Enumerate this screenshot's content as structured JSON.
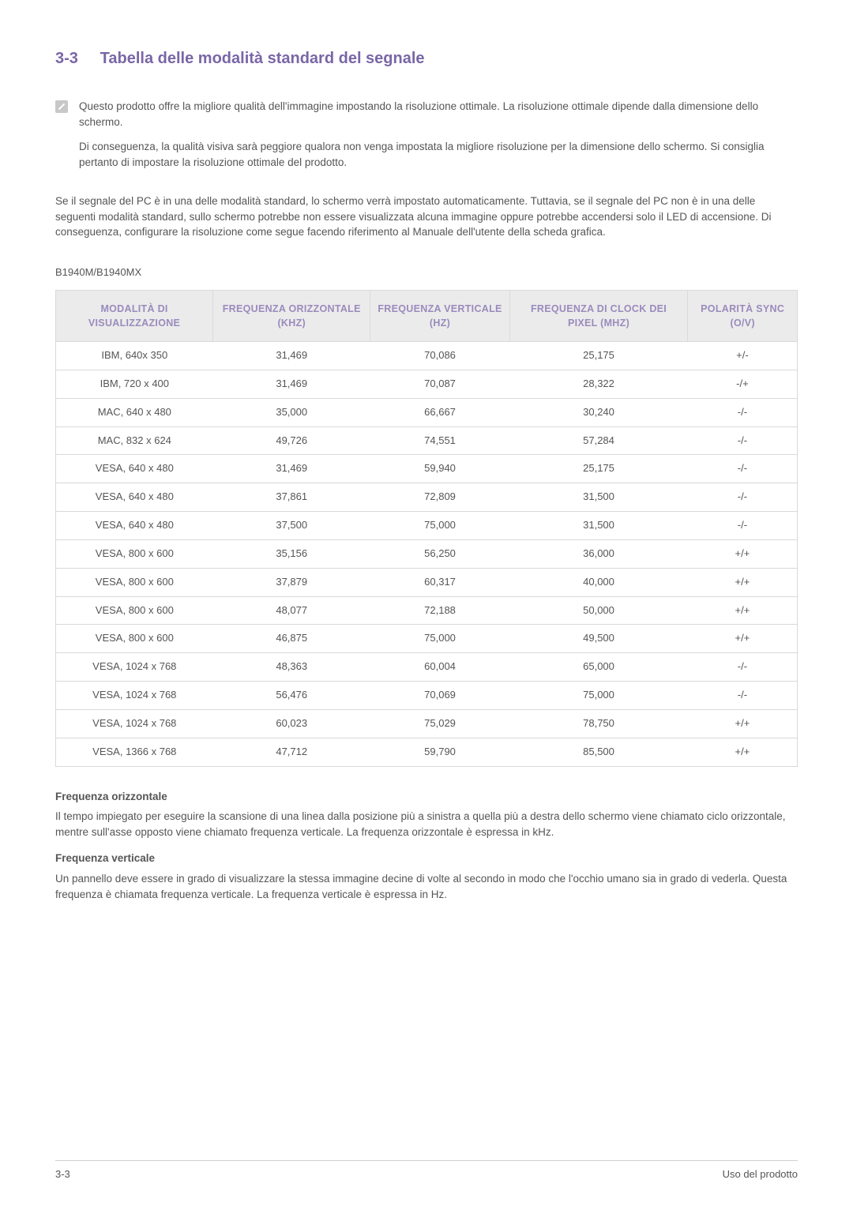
{
  "heading": {
    "number": "3-3",
    "title": "Tabella delle modalità standard del segnale"
  },
  "note": {
    "p1": "Questo prodotto offre la migliore qualità dell'immagine impostando la risoluzione ottimale. La risoluzione ottimale dipende dalla dimensione dello schermo.",
    "p2": "Di conseguenza, la qualità visiva sarà peggiore qualora non venga impostata la migliore risoluzione per la dimensione dello schermo. Si consiglia pertanto di impostare la risoluzione ottimale del prodotto."
  },
  "body_para": "Se il segnale del PC è in una delle modalità standard, lo schermo verrà impostato automaticamente. Tuttavia, se il segnale del PC non è in una delle seguenti modalità standard, sullo schermo potrebbe non essere visualizzata alcuna immagine oppure potrebbe accendersi solo il LED di accensione. Di conseguenza, configurare la risoluzione come segue facendo riferimento al Manuale dell'utente della scheda grafica.",
  "model": "B1940M/B1940MX",
  "table": {
    "columns": [
      "MODALITÀ DI VISUALIZZAZIONE",
      "FREQUENZA ORIZZONTALE (KHZ)",
      "FREQUENZA VERTICALE (HZ)",
      "FREQUENZA DI CLOCK DEI PIXEL (MHZ)",
      "POLARITÀ SYNC (O/V)"
    ],
    "rows": [
      [
        "IBM, 640x 350",
        "31,469",
        "70,086",
        "25,175",
        "+/-"
      ],
      [
        "IBM, 720 x 400",
        "31,469",
        "70,087",
        "28,322",
        "-/+"
      ],
      [
        "MAC, 640 x 480",
        "35,000",
        "66,667",
        "30,240",
        "-/-"
      ],
      [
        "MAC, 832 x 624",
        "49,726",
        "74,551",
        "57,284",
        "-/-"
      ],
      [
        "VESA, 640 x 480",
        "31,469",
        "59,940",
        "25,175",
        "-/-"
      ],
      [
        "VESA, 640 x 480",
        "37,861",
        "72,809",
        "31,500",
        "-/-"
      ],
      [
        "VESA, 640 x 480",
        "37,500",
        "75,000",
        "31,500",
        "-/-"
      ],
      [
        "VESA, 800 x 600",
        "35,156",
        "56,250",
        "36,000",
        "+/+"
      ],
      [
        "VESA, 800 x 600",
        "37,879",
        "60,317",
        "40,000",
        "+/+"
      ],
      [
        "VESA, 800 x 600",
        "48,077",
        "72,188",
        "50,000",
        "+/+"
      ],
      [
        "VESA, 800 x 600",
        "46,875",
        "75,000",
        "49,500",
        "+/+"
      ],
      [
        "VESA, 1024 x 768",
        "48,363",
        "60,004",
        "65,000",
        "-/-"
      ],
      [
        "VESA, 1024 x 768",
        "56,476",
        "70,069",
        "75,000",
        "-/-"
      ],
      [
        "VESA, 1024 x 768",
        "60,023",
        "75,029",
        "78,750",
        "+/+"
      ],
      [
        "VESA, 1366 x 768",
        "47,712",
        "59,790",
        "85,500",
        "+/+"
      ]
    ]
  },
  "defs": {
    "t1": "Frequenza orizzontale",
    "b1": "Il tempo impiegato per eseguire la scansione di una linea dalla posizione più a sinistra a quella più a destra dello schermo viene chiamato ciclo orizzontale, mentre sull'asse opposto viene chiamato frequenza verticale. La frequenza orizzontale è espressa in kHz.",
    "t2": "Frequenza verticale",
    "b2": "Un pannello deve essere in grado di visualizzare la stessa immagine decine di volte al secondo in modo che l'occhio umano sia in grado di vederla. Questa frequenza è chiamata frequenza verticale. La frequenza verticale è espressa in Hz."
  },
  "footer": {
    "left": "3-3",
    "right": "Uso del prodotto"
  }
}
